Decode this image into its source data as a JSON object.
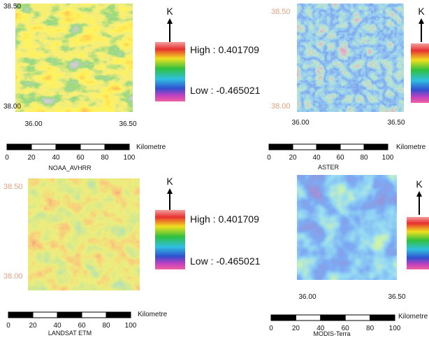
{
  "panels": [
    {
      "caption": "NOAA_AVHRR",
      "lat_labels": [
        "38.50",
        "38.00"
      ],
      "lon_labels": [
        "36.00",
        "36.50"
      ],
      "scale_labels": [
        "0",
        "20",
        "40",
        "60",
        "80",
        "100"
      ],
      "scale_unit": "Kilometre",
      "legend_title": "K",
      "legend_high": "High : 0.401709",
      "legend_low": "Low : -0.465021"
    },
    {
      "caption": "ASTER",
      "lat_labels": [
        "38.50",
        "38.00"
      ],
      "lon_labels": [
        "36.00",
        "36.50"
      ],
      "scale_labels": [
        "0",
        "20",
        "40",
        "60",
        "80",
        "100"
      ],
      "scale_unit": "Kilometre",
      "legend_title": "K"
    },
    {
      "caption": "LANDSAT ETM",
      "lat_labels": [
        "38.50",
        "38.00"
      ],
      "lon_labels": [],
      "scale_labels": [
        "0",
        "20",
        "40",
        "60",
        "80",
        "100"
      ],
      "scale_unit": "Kilometre",
      "legend_title": "K",
      "legend_high": "High : 0.401709",
      "legend_low": "Low : -0.465021"
    },
    {
      "caption": "MODIS-Terra",
      "lat_labels": [],
      "lon_labels": [
        "36.00",
        "36.50"
      ],
      "scale_labels": [
        "0",
        "20",
        "40",
        "60",
        "80",
        "100"
      ],
      "scale_unit": "Kilometre",
      "legend_title": "K"
    }
  ]
}
